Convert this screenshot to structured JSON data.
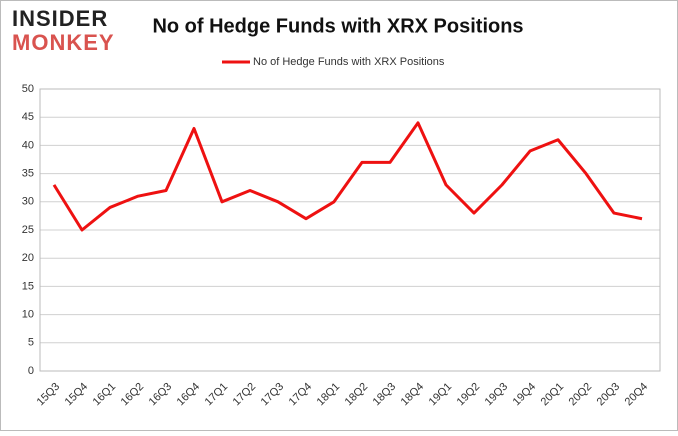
{
  "logo": {
    "line1": "INSIDER",
    "line2": "MONKEY"
  },
  "chart_data": {
    "type": "line",
    "title": "No of Hedge Funds with XRX Positions",
    "categories": [
      "15Q3",
      "15Q4",
      "16Q1",
      "16Q2",
      "16Q3",
      "16Q4",
      "17Q1",
      "17Q2",
      "17Q3",
      "17Q4",
      "18Q1",
      "18Q2",
      "18Q3",
      "18Q4",
      "19Q1",
      "19Q2",
      "19Q3",
      "19Q4",
      "20Q1",
      "20Q2",
      "20Q3",
      "20Q4"
    ],
    "series": [
      {
        "name": "No of Hedge Funds with XRX Positions",
        "color": "#ee1111",
        "values": [
          33,
          25,
          29,
          31,
          32,
          43,
          30,
          32,
          30,
          27,
          30,
          37,
          37,
          44,
          33,
          28,
          33,
          39,
          41,
          35,
          28,
          27
        ]
      }
    ],
    "ylim": [
      0,
      50
    ],
    "yticks": [
      0,
      5,
      10,
      15,
      20,
      25,
      30,
      35,
      40,
      45,
      50
    ],
    "grid": true,
    "legend": "top"
  }
}
